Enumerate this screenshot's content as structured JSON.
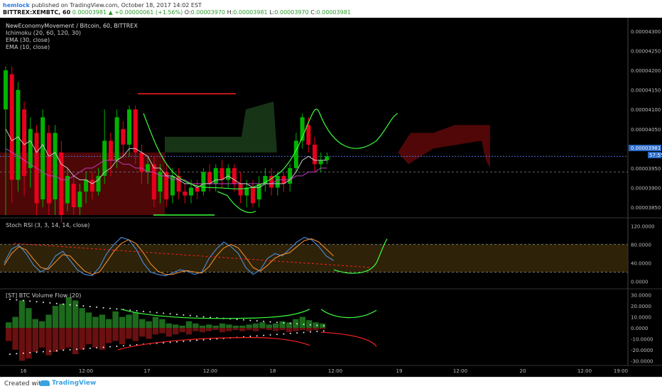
{
  "header": {
    "author": "hemlock",
    "published": "published on TradingView.com, October 18, 2017 14:02 EST",
    "symbol": "BITTREX:XEMBTC, 60",
    "last": "0.00003981",
    "change": "▲ +0.00000061 (+1.56%)",
    "o_label": "O:",
    "o": "0.00003970",
    "h_label": "H:",
    "h": "0.00003981",
    "l_label": "L:",
    "l": "0.00003970",
    "c_label": "C:",
    "c": "0.00003981"
  },
  "legend": {
    "title": "NewEconomyMovement / Bitcoin, 60, BITTREX",
    "ichimoku": "Ichimoku (20, 60, 120, 30)",
    "ema30": "EMA (30, close)",
    "ema10": "EMA (10, close)"
  },
  "price_badges": {
    "last": "0.00003981",
    "countdown": "57:55"
  },
  "stoch_title": "Stoch RSI (3, 3, 14, 14, close)",
  "vol_title": "[ST] BTC Volume Flow (20)",
  "footer": {
    "created": "Created with",
    "brand": "TradingView"
  },
  "colors": {
    "up": "#00b300",
    "down": "#e8001c",
    "cloud_bull": "#1a3a1a",
    "cloud_bear": "#5a0808",
    "blue_line": "#4a90e2",
    "orange_line": "#f08c30",
    "green_draw": "#3cff3c",
    "red_draw": "#ff2020"
  },
  "chart_data": [
    {
      "type": "line",
      "title": "NewEconomyMovement / Bitcoin, 60, BITTREX",
      "ylim": [
        3.83e-05,
        4.32e-05
      ],
      "y_ticks": [
        "0.00004300",
        "0.00004250",
        "0.00004200",
        "0.00004150",
        "0.00004100",
        "0.00004050",
        "0.00004000",
        "0.00003950",
        "0.00003900",
        "0.00003850"
      ],
      "x_ticks": [
        "16",
        "12:00",
        "17",
        "12:00",
        "18",
        "12:00",
        "19",
        "12:00",
        "20",
        "12:00",
        "19:00"
      ],
      "candles": [
        {
          "o": 4.1e-05,
          "c": 4.2e-05,
          "h": 4.21e-05,
          "l": 3.83e-05
        },
        {
          "o": 4.19e-05,
          "c": 3.92e-05,
          "h": 4.21e-05,
          "l": 3.86e-05
        },
        {
          "o": 3.92e-05,
          "c": 4.15e-05,
          "h": 4.17e-05,
          "l": 3.89e-05
        },
        {
          "o": 4.1e-05,
          "c": 3.93e-05,
          "h": 4.12e-05,
          "l": 3.88e-05
        },
        {
          "o": 3.95e-05,
          "c": 4.05e-05,
          "h": 4.08e-05,
          "l": 3.9e-05
        },
        {
          "o": 4.04e-05,
          "c": 3.86e-05,
          "h": 4.06e-05,
          "l": 3.83e-05
        },
        {
          "o": 3.87e-05,
          "c": 4.08e-05,
          "h": 4.1e-05,
          "l": 3.85e-05
        },
        {
          "o": 4.04e-05,
          "c": 3.86e-05,
          "h": 4.06e-05,
          "l": 3.83e-05
        },
        {
          "o": 3.87e-05,
          "c": 4.04e-05,
          "h": 4.06e-05,
          "l": 3.83e-05
        },
        {
          "o": 3.99e-05,
          "c": 3.83e-05,
          "h": 4.02e-05,
          "l": 3.81e-05
        },
        {
          "o": 3.86e-05,
          "c": 3.93e-05,
          "h": 3.95e-05,
          "l": 3.84e-05
        },
        {
          "o": 3.91e-05,
          "c": 3.85e-05,
          "h": 3.93e-05,
          "l": 3.83e-05
        },
        {
          "o": 3.85e-05,
          "c": 3.89e-05,
          "h": 3.91e-05,
          "l": 3.83e-05
        },
        {
          "o": 3.89e-05,
          "c": 3.92e-05,
          "h": 3.94e-05,
          "l": 3.86e-05
        },
        {
          "o": 3.92e-05,
          "c": 3.89e-05,
          "h": 3.94e-05,
          "l": 3.87e-05
        },
        {
          "o": 3.89e-05,
          "c": 3.93e-05,
          "h": 3.95e-05,
          "l": 3.88e-05
        },
        {
          "o": 3.93e-05,
          "c": 4.02e-05,
          "h": 4.1e-05,
          "l": 3.91e-05
        },
        {
          "o": 4.02e-05,
          "c": 3.97e-05,
          "h": 4.04e-05,
          "l": 3.93e-05
        },
        {
          "o": 3.97e-05,
          "c": 4.08e-05,
          "h": 4.1e-05,
          "l": 3.95e-05
        },
        {
          "o": 4.05e-05,
          "c": 4.01e-05,
          "h": 4.07e-05,
          "l": 3.98e-05
        },
        {
          "o": 4.01e-05,
          "c": 4.1e-05,
          "h": 4.11e-05,
          "l": 3.98e-05
        },
        {
          "o": 4.1e-05,
          "c": 3.99e-05,
          "h": 4.11e-05,
          "l": 3.96e-05
        },
        {
          "o": 3.99e-05,
          "c": 3.94e-05,
          "h": 4.01e-05,
          "l": 3.91e-05
        },
        {
          "o": 3.94e-05,
          "c": 3.96e-05,
          "h": 3.98e-05,
          "l": 3.91e-05
        },
        {
          "o": 3.96e-05,
          "c": 3.87e-05,
          "h": 3.98e-05,
          "l": 3.85e-05
        },
        {
          "o": 3.89e-05,
          "c": 3.94e-05,
          "h": 3.96e-05,
          "l": 3.86e-05
        },
        {
          "o": 3.94e-05,
          "c": 3.87e-05,
          "h": 3.96e-05,
          "l": 3.85e-05
        },
        {
          "o": 3.88e-05,
          "c": 3.93e-05,
          "h": 3.95e-05,
          "l": 3.86e-05
        },
        {
          "o": 3.93e-05,
          "c": 3.89e-05,
          "h": 3.95e-05,
          "l": 3.87e-05
        },
        {
          "o": 3.89e-05,
          "c": 3.88e-05,
          "h": 3.91e-05,
          "l": 3.86e-05
        },
        {
          "o": 3.88e-05,
          "c": 3.9e-05,
          "h": 3.92e-05,
          "l": 3.86e-05
        },
        {
          "o": 3.9e-05,
          "c": 3.89e-05,
          "h": 3.92e-05,
          "l": 3.87e-05
        },
        {
          "o": 3.89e-05,
          "c": 3.94e-05,
          "h": 3.95e-05,
          "l": 3.88e-05
        },
        {
          "o": 3.94e-05,
          "c": 3.91e-05,
          "h": 3.96e-05,
          "l": 3.89e-05
        },
        {
          "o": 3.91e-05,
          "c": 3.95e-05,
          "h": 3.96e-05,
          "l": 3.89e-05
        },
        {
          "o": 3.95e-05,
          "c": 3.92e-05,
          "h": 3.97e-05,
          "l": 3.9e-05
        },
        {
          "o": 3.92e-05,
          "c": 3.95e-05,
          "h": 3.96e-05,
          "l": 3.9e-05
        },
        {
          "o": 3.95e-05,
          "c": 3.91e-05,
          "h": 3.96e-05,
          "l": 3.89e-05
        },
        {
          "o": 3.91e-05,
          "c": 3.88e-05,
          "h": 3.94e-05,
          "l": 3.86e-05
        },
        {
          "o": 3.88e-05,
          "c": 3.9e-05,
          "h": 3.92e-05,
          "l": 3.85e-05
        },
        {
          "o": 3.9e-05,
          "c": 3.86e-05,
          "h": 3.92e-05,
          "l": 3.85e-05
        },
        {
          "o": 3.87e-05,
          "c": 3.91e-05,
          "h": 3.93e-05,
          "l": 3.85e-05
        },
        {
          "o": 3.91e-05,
          "c": 3.93e-05,
          "h": 3.95e-05,
          "l": 3.89e-05
        },
        {
          "o": 3.93e-05,
          "c": 3.9e-05,
          "h": 3.95e-05,
          "l": 3.88e-05
        },
        {
          "o": 3.9e-05,
          "c": 3.93e-05,
          "h": 3.94e-05,
          "l": 3.88e-05
        },
        {
          "o": 3.93e-05,
          "c": 3.91e-05,
          "h": 3.94e-05,
          "l": 3.89e-05
        },
        {
          "o": 3.91e-05,
          "c": 3.95e-05,
          "h": 3.96e-05,
          "l": 3.89e-05
        },
        {
          "o": 3.95e-05,
          "c": 4.02e-05,
          "h": 4.04e-05,
          "l": 3.94e-05
        },
        {
          "o": 4.02e-05,
          "c": 4.08e-05,
          "h": 4.09e-05,
          "l": 4e-05
        },
        {
          "o": 4.06e-05,
          "c": 4.01e-05,
          "h": 4.08e-05,
          "l": 3.99e-05
        },
        {
          "o": 4.01e-05,
          "c": 3.96e-05,
          "h": 4.03e-05,
          "l": 3.94e-05
        },
        {
          "o": 3.96e-05,
          "c": 3.97e-05,
          "h": 3.99e-05,
          "l": 3.94e-05
        },
        {
          "o": 3.97e-05,
          "c": 3.98e-05,
          "h": 3.99e-05,
          "l": 3.96e-05
        }
      ],
      "series": [
        {
          "name": "EMA (30, close)",
          "values": [
            4e-05,
            3.99e-05,
            3.98e-05,
            3.97e-05,
            3.96e-05,
            3.95e-05,
            3.94e-05,
            3.93e-05,
            3.93e-05,
            3.92e-05,
            3.92e-05,
            3.93e-05,
            3.94e-05,
            3.95e-05,
            3.95e-05,
            3.96e-05,
            3.97e-05,
            3.97e-05,
            3.97e-05,
            3.96e-05,
            3.96e-05,
            3.95e-05,
            3.95e-05,
            3.94e-05,
            3.94e-05,
            3.93e-05,
            3.93e-05,
            3.92e-05,
            3.92e-05,
            3.92e-05,
            3.91e-05,
            3.91e-05,
            3.91e-05,
            3.91e-05,
            3.91e-05,
            3.91e-05,
            3.91e-05,
            3.91e-05,
            3.91e-05,
            3.91e-05,
            3.91e-05,
            3.91e-05,
            3.91e-05,
            3.91e-05,
            3.92e-05,
            3.92e-05,
            3.92e-05,
            3.93e-05,
            3.93e-05,
            3.94e-05,
            3.94e-05,
            3.95e-05,
            3.95e-05
          ]
        },
        {
          "name": "EMA (10, close)",
          "values": [
            4.05e-05,
            4.02e-05,
            4.03e-05,
            4.01e-05,
            4.02e-05,
            3.99e-05,
            4.01e-05,
            3.98e-05,
            3.99e-05,
            3.96e-05,
            3.95e-05,
            3.93e-05,
            3.92e-05,
            3.92e-05,
            3.91e-05,
            3.92e-05,
            3.94e-05,
            3.95e-05,
            3.97e-05,
            3.98e-05,
            4e-05,
            4e-05,
            3.99e-05,
            3.98e-05,
            3.95e-05,
            3.95e-05,
            3.93e-05,
            3.93e-05,
            3.92e-05,
            3.91e-05,
            3.91e-05,
            3.9e-05,
            3.91e-05,
            3.91e-05,
            3.92e-05,
            3.92e-05,
            3.93e-05,
            3.92e-05,
            3.91e-05,
            3.91e-05,
            3.9e-05,
            3.9e-05,
            3.91e-05,
            3.91e-05,
            3.91e-05,
            3.91e-05,
            3.92e-05,
            3.94e-05,
            3.97e-05,
            3.98e-05,
            3.97e-05,
            3.97e-05,
            3.97e-05
          ]
        }
      ],
      "horizontal_lines": [
        3.98e-05,
        3.94e-05
      ]
    },
    {
      "type": "line",
      "title": "Stoch RSI (3, 3, 14, 14, close)",
      "ylim": [
        -10,
        125
      ],
      "y_ticks": [
        "120.0000",
        "80.0000",
        "40.0000",
        "0.0000"
      ],
      "band": [
        20,
        80
      ],
      "series": [
        {
          "name": "K",
          "values": [
            40,
            70,
            78,
            60,
            35,
            20,
            30,
            55,
            65,
            45,
            25,
            15,
            12,
            30,
            60,
            80,
            95,
            90,
            70,
            40,
            20,
            15,
            12,
            18,
            25,
            22,
            15,
            20,
            50,
            70,
            85,
            75,
            60,
            30,
            15,
            25,
            50,
            60,
            55,
            70,
            85,
            95,
            90,
            75,
            55,
            45
          ]
        },
        {
          "name": "D",
          "values": [
            35,
            60,
            75,
            68,
            48,
            30,
            26,
            42,
            58,
            55,
            38,
            22,
            15,
            20,
            42,
            65,
            82,
            90,
            82,
            62,
            38,
            22,
            15,
            15,
            20,
            23,
            20,
            18,
            32,
            55,
            72,
            80,
            72,
            52,
            30,
            22,
            35,
            50,
            58,
            62,
            75,
            88,
            92,
            85,
            70,
            55
          ]
        }
      ]
    },
    {
      "type": "bar",
      "title": "[ST] BTC Volume Flow (20)",
      "ylim": [
        -33,
        33
      ],
      "y_ticks": [
        "30.0000",
        "20.0000",
        "10.0000",
        "0.0000",
        "-10.0000",
        "-20.0000",
        "-30.0000"
      ],
      "values_pos": [
        5,
        10,
        25,
        18,
        8,
        6,
        12,
        20,
        22,
        28,
        25,
        18,
        14,
        10,
        12,
        8,
        15,
        10,
        12,
        14,
        8,
        6,
        10,
        8,
        4,
        3,
        2,
        6,
        4,
        2,
        3,
        2,
        4,
        3,
        2,
        2,
        3,
        4,
        5,
        3,
        4,
        6,
        5,
        8,
        10,
        7,
        5,
        4
      ],
      "values_neg": [
        -12,
        -20,
        -30,
        -28,
        -22,
        -18,
        -25,
        -22,
        -20,
        -18,
        -24,
        -20,
        -15,
        -18,
        -20,
        -14,
        -12,
        -15,
        -10,
        -12,
        -8,
        -10,
        -6,
        -5,
        -8,
        -6,
        -4,
        -6,
        -3,
        -4,
        -3,
        -2,
        -4,
        -3,
        -2,
        -3,
        -2,
        -3,
        -1,
        -2,
        -3,
        -2,
        -4,
        -3,
        -2,
        -3,
        -2,
        -1
      ]
    }
  ]
}
